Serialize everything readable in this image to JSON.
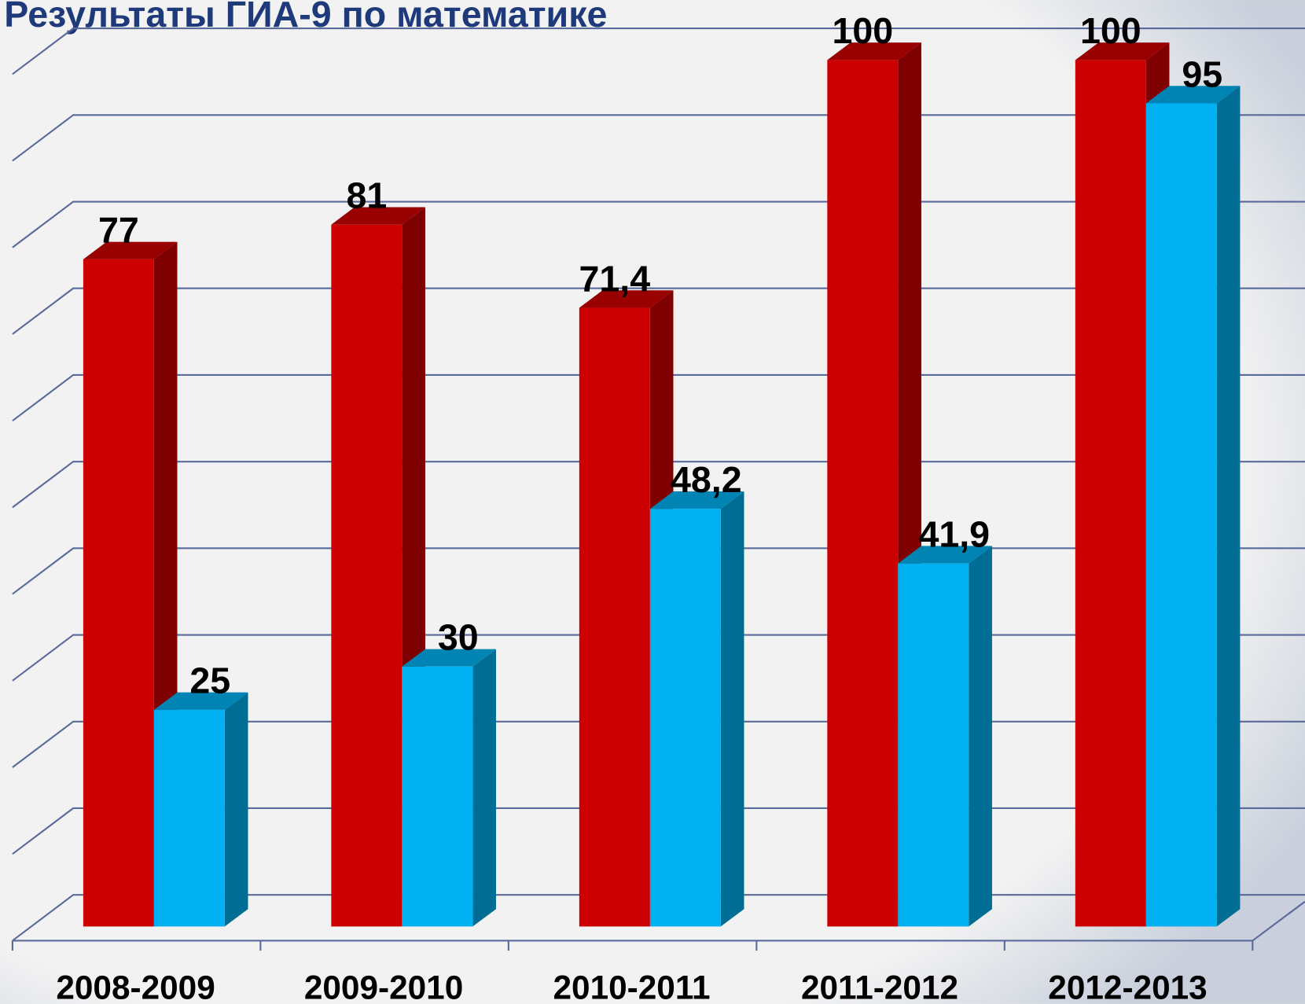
{
  "chart_data": {
    "type": "bar3d",
    "title": "Результаты ГИА-9 по математике",
    "categories": [
      "2008-2009",
      "2009-2010",
      "2010-2011",
      "2011-2012",
      "2012-2013"
    ],
    "series": [
      {
        "color": "#cc0000",
        "values": [
          77,
          81,
          71.4,
          100,
          100
        ],
        "value_labels": [
          "77",
          "81",
          "71,4",
          "100",
          "100"
        ]
      },
      {
        "color": "#00b0f0",
        "values": [
          25,
          30,
          48.2,
          41.9,
          95
        ],
        "value_labels": [
          "25",
          "30",
          "48,2",
          "41,9",
          "95"
        ]
      }
    ],
    "ylim": [
      0,
      100
    ],
    "yticks": [
      0,
      10,
      20,
      30,
      40,
      50,
      60,
      70,
      80,
      90,
      100
    ],
    "grid": true
  }
}
